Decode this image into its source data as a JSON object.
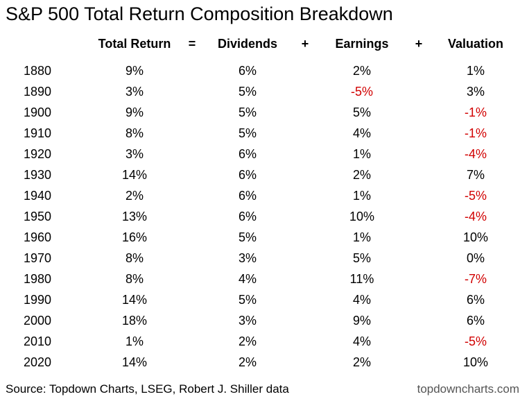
{
  "title": "S&P 500 Total Return Composition Breakdown",
  "source": "Source: Topdown Charts, LSEG, Robert J. Shiller data",
  "site": "topdowncharts.com",
  "colors": {
    "negative": "#d10000",
    "text": "#000000"
  },
  "chart_data": {
    "type": "table",
    "title": "S&P 500 Total Return Composition Breakdown",
    "headers": [
      "Total Return",
      "=",
      "Dividends",
      "+",
      "Earnings",
      "+",
      "Valuation"
    ],
    "columns": [
      "Total Return",
      "Dividends",
      "Earnings",
      "Valuation"
    ],
    "rows": [
      {
        "year": "1880",
        "total": "9%",
        "div": "6%",
        "earn": "2%",
        "val": "1%"
      },
      {
        "year": "1890",
        "total": "3%",
        "div": "5%",
        "earn": "-5%",
        "val": "3%"
      },
      {
        "year": "1900",
        "total": "9%",
        "div": "5%",
        "earn": "5%",
        "val": "-1%"
      },
      {
        "year": "1910",
        "total": "8%",
        "div": "5%",
        "earn": "4%",
        "val": "-1%"
      },
      {
        "year": "1920",
        "total": "3%",
        "div": "6%",
        "earn": "1%",
        "val": "-4%"
      },
      {
        "year": "1930",
        "total": "14%",
        "div": "6%",
        "earn": "2%",
        "val": "7%"
      },
      {
        "year": "1940",
        "total": "2%",
        "div": "6%",
        "earn": "1%",
        "val": "-5%"
      },
      {
        "year": "1950",
        "total": "13%",
        "div": "6%",
        "earn": "10%",
        "val": "-4%"
      },
      {
        "year": "1960",
        "total": "16%",
        "div": "5%",
        "earn": "1%",
        "val": "10%"
      },
      {
        "year": "1970",
        "total": "8%",
        "div": "3%",
        "earn": "5%",
        "val": "0%"
      },
      {
        "year": "1980",
        "total": "8%",
        "div": "4%",
        "earn": "11%",
        "val": "-7%"
      },
      {
        "year": "1990",
        "total": "14%",
        "div": "5%",
        "earn": "4%",
        "val": "6%"
      },
      {
        "year": "2000",
        "total": "18%",
        "div": "3%",
        "earn": "9%",
        "val": "6%"
      },
      {
        "year": "2010",
        "total": "1%",
        "div": "2%",
        "earn": "4%",
        "val": "-5%"
      },
      {
        "year": "2020",
        "total": "14%",
        "div": "2%",
        "earn": "2%",
        "val": "10%"
      }
    ]
  }
}
